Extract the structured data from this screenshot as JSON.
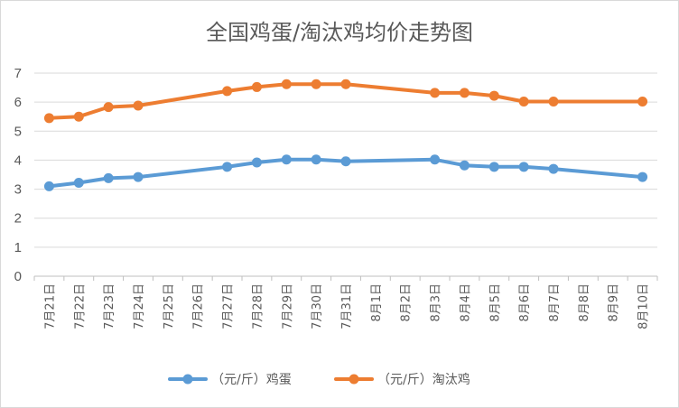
{
  "chart_data": {
    "type": "line",
    "title": "全国鸡蛋/淘汰鸡均价走势图",
    "categories": [
      "7月21日",
      "7月22日",
      "7月23日",
      "7月24日",
      "7月25日",
      "7月26日",
      "7月27日",
      "7月28日",
      "7月29日",
      "7月30日",
      "7月31日",
      "8月1日",
      "8月2日",
      "8月3日",
      "8月4日",
      "8月5日",
      "8月6日",
      "8月7日",
      "8月8日",
      "8月9日",
      "8月10日"
    ],
    "yticks": [
      "0",
      "1",
      "2",
      "3",
      "4",
      "5",
      "6",
      "7"
    ],
    "ylim": [
      0,
      7
    ],
    "grid": true,
    "legend_position": "bottom",
    "series": [
      {
        "name": "（元/斤）鸡蛋",
        "color": "#5B9BD5",
        "values": [
          3.1,
          3.22,
          3.38,
          3.42,
          null,
          null,
          3.77,
          3.92,
          4.02,
          4.02,
          3.96,
          null,
          null,
          4.02,
          3.82,
          3.77,
          3.77,
          3.7,
          null,
          null,
          3.42
        ]
      },
      {
        "name": "（元/斤）淘汰鸡",
        "color": "#ED7D31",
        "values": [
          5.45,
          5.5,
          5.83,
          5.88,
          null,
          null,
          6.38,
          6.52,
          6.62,
          6.62,
          6.62,
          null,
          null,
          6.32,
          6.32,
          6.22,
          6.02,
          6.02,
          null,
          null,
          6.02
        ]
      }
    ]
  }
}
